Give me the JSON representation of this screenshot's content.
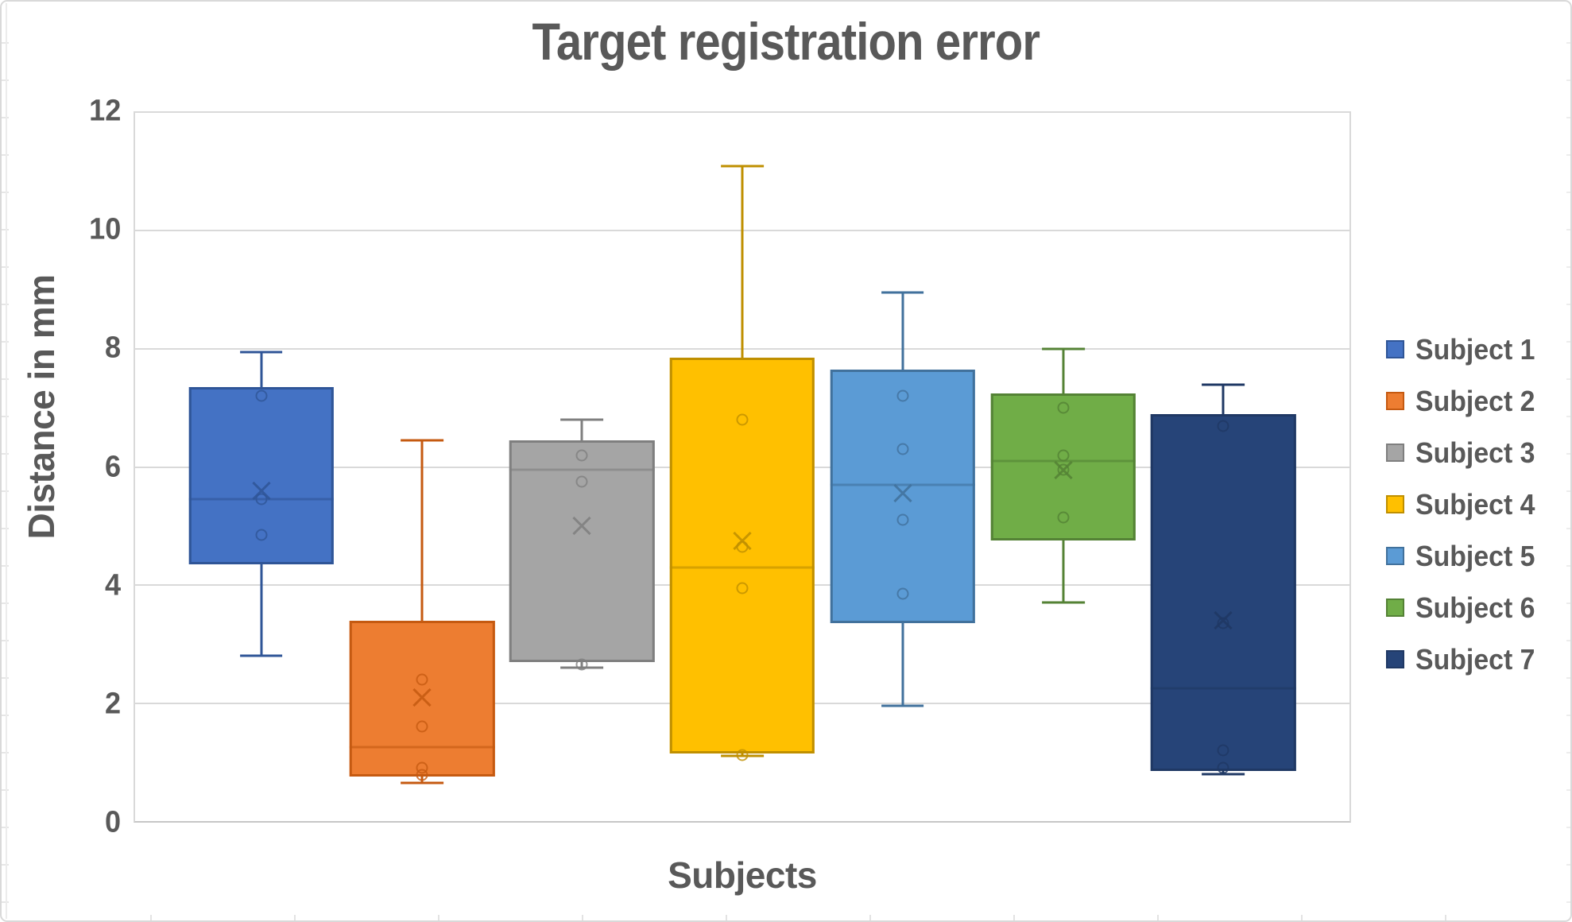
{
  "window": {
    "background": "#FFFFFF",
    "border_color": "#D9D9D9",
    "text_color": "#595959",
    "gridline_color": "#D9D9D9"
  },
  "chart_data": {
    "type": "boxplot",
    "title": "Target registration error",
    "xlabel": "Subjects",
    "ylabel": "Distance in mm",
    "ylim": [
      0,
      12
    ],
    "yticks": [
      12,
      10,
      8,
      6,
      4,
      2,
      0
    ],
    "grid": true,
    "legend_position": "right",
    "series": [
      {
        "name": "Subject 1",
        "fill": "#4472C4",
        "border": "#2F5597",
        "min": 2.8,
        "q1": 4.35,
        "median": 5.45,
        "q3": 7.35,
        "max": 7.95,
        "mean": 5.6,
        "points": [
          7.2,
          5.45,
          4.85
        ]
      },
      {
        "name": "Subject 2",
        "fill": "#ED7D31",
        "border": "#C55A11",
        "min": 0.65,
        "q1": 0.75,
        "median": 1.25,
        "q3": 3.4,
        "max": 6.45,
        "mean": 2.1,
        "points": [
          2.4,
          1.6,
          0.9,
          0.78
        ]
      },
      {
        "name": "Subject 3",
        "fill": "#A5A5A5",
        "border": "#7F7F7F",
        "min": 2.6,
        "q1": 2.7,
        "median": 5.95,
        "q3": 6.45,
        "max": 6.8,
        "mean": 5.0,
        "points": [
          6.2,
          5.75,
          2.65
        ]
      },
      {
        "name": "Subject 4",
        "fill": "#FFC000",
        "border": "#BF8F00",
        "min": 1.1,
        "q1": 1.15,
        "median": 4.3,
        "q3": 7.85,
        "max": 11.1,
        "mean": 4.75,
        "points": [
          6.8,
          4.65,
          3.95,
          1.12
        ]
      },
      {
        "name": "Subject 5",
        "fill": "#5B9BD5",
        "border": "#41719C",
        "min": 1.95,
        "q1": 3.35,
        "median": 5.7,
        "q3": 7.65,
        "max": 8.95,
        "mean": 5.55,
        "points": [
          7.2,
          6.3,
          5.1,
          3.85
        ]
      },
      {
        "name": "Subject 6",
        "fill": "#70AD47",
        "border": "#548235",
        "min": 3.7,
        "q1": 4.75,
        "median": 6.1,
        "q3": 7.25,
        "max": 8.0,
        "mean": 5.95,
        "points": [
          7.0,
          6.2,
          5.95,
          5.15
        ]
      },
      {
        "name": "Subject 7",
        "fill": "#264478",
        "border": "#1F3864",
        "min": 0.8,
        "q1": 0.85,
        "median": 2.25,
        "q3": 6.9,
        "max": 7.4,
        "mean": 3.4,
        "points": [
          6.7,
          3.35,
          1.2,
          0.9
        ]
      }
    ]
  }
}
